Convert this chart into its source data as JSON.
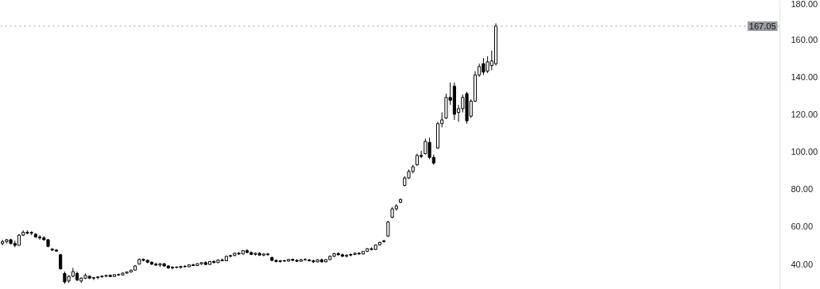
{
  "chart_data": {
    "type": "candlestick",
    "categories": [
      null,
      null,
      null,
      null,
      null,
      null,
      null,
      null,
      null,
      null,
      null,
      null,
      null,
      null,
      null,
      null,
      null,
      null,
      null,
      null,
      null,
      null,
      null,
      null,
      null,
      null,
      null,
      null,
      null,
      null,
      null,
      null,
      null,
      null,
      null,
      null,
      null,
      null,
      null,
      null,
      null,
      null,
      null,
      null,
      null,
      null,
      null,
      null,
      null,
      null,
      null,
      null,
      null,
      null,
      null,
      null,
      null,
      null,
      null,
      null,
      null,
      null,
      null,
      null,
      null,
      null,
      null,
      null,
      null,
      null,
      null,
      null,
      null,
      null,
      null,
      null,
      null,
      null,
      null,
      null,
      null,
      null,
      null,
      null,
      null,
      null,
      null,
      null,
      null,
      null,
      null,
      null,
      null,
      null,
      null,
      null,
      null,
      null,
      null,
      null,
      null,
      null,
      null,
      null,
      null,
      null,
      null,
      null,
      null,
      null,
      null,
      null,
      null,
      null,
      null,
      null,
      null,
      null,
      null,
      null,
      null,
      null,
      null,
      null,
      null,
      null,
      null,
      null,
      null,
      null,
      null,
      null,
      null,
      null,
      null,
      null,
      null,
      null,
      null,
      null,
      null,
      null,
      null,
      null,
      null,
      null,
      null,
      null,
      null,
      null,
      null,
      null,
      null,
      null,
      null,
      null,
      null,
      null,
      null,
      null,
      null,
      null,
      null,
      null,
      null,
      null,
      null,
      null,
      null,
      null,
      null,
      null,
      null,
      null,
      null,
      null,
      null,
      null,
      null,
      null,
      null,
      null,
      null,
      null,
      null,
      null,
      null,
      null
    ],
    "ohlc": [
      [
        51,
        53,
        50,
        52
      ],
      [
        52,
        53.5,
        51,
        53
      ],
      [
        53,
        53.5,
        50.5,
        51
      ],
      [
        51,
        52.5,
        49,
        50
      ],
      [
        50,
        56,
        50,
        55.5
      ],
      [
        55.5,
        58,
        55,
        57
      ],
      [
        57,
        58,
        56,
        56.5
      ],
      [
        56.5,
        57.5,
        55.5,
        57
      ],
      [
        56,
        56.5,
        54,
        54.5
      ],
      [
        54.5,
        55.5,
        53,
        54
      ],
      [
        54,
        55,
        52.5,
        53
      ],
      [
        53,
        53.5,
        49,
        49.5
      ],
      [
        48,
        48.5,
        47,
        47.5
      ],
      [
        47.5,
        48,
        46.5,
        47
      ],
      [
        45,
        45.5,
        37,
        37.5
      ],
      [
        35,
        36,
        29.5,
        30.5
      ],
      [
        31,
        34,
        30,
        33.5
      ],
      [
        33.5,
        38,
        33,
        36
      ],
      [
        35,
        36,
        31,
        31.5
      ],
      [
        31,
        33,
        30,
        32.5
      ],
      [
        32.5,
        35,
        32,
        34
      ],
      [
        33.5,
        34,
        32,
        32.5
      ],
      [
        32.5,
        33,
        31.5,
        32.8
      ],
      [
        32.8,
        33.5,
        32,
        33.2
      ],
      [
        33.2,
        34,
        32.8,
        33.6
      ],
      [
        33.6,
        34.2,
        33,
        34
      ],
      [
        34,
        34.5,
        33.2,
        33.4
      ],
      [
        33.4,
        34.6,
        33.2,
        34.4
      ],
      [
        34.4,
        35,
        33.8,
        34.2
      ],
      [
        34.2,
        35.5,
        34,
        35.2
      ],
      [
        35.2,
        36,
        34.8,
        35.8
      ],
      [
        35.8,
        37,
        35.5,
        36.8
      ],
      [
        36.8,
        39.5,
        36.5,
        39
      ],
      [
        40,
        43,
        39.8,
        42.5
      ],
      [
        42.5,
        43,
        41.5,
        42
      ],
      [
        42,
        42.5,
        40.5,
        41
      ],
      [
        41,
        41.5,
        39.5,
        40
      ],
      [
        40,
        40.8,
        39,
        39.5
      ],
      [
        39.5,
        40.5,
        38.5,
        40.2
      ],
      [
        40.2,
        40.6,
        38.6,
        39
      ],
      [
        39,
        39.5,
        37.5,
        38
      ],
      [
        38,
        38.8,
        37.2,
        38.4
      ],
      [
        38.4,
        38.8,
        37.8,
        38.2
      ],
      [
        38.2,
        39,
        37.6,
        38.8
      ],
      [
        38.8,
        39.5,
        38.2,
        38.6
      ],
      [
        38.6,
        39.8,
        38.4,
        39.6
      ],
      [
        39.6,
        40.2,
        39,
        39.2
      ],
      [
        39.2,
        40.5,
        39,
        40.2
      ],
      [
        40.2,
        41,
        39.6,
        40.8
      ],
      [
        40.8,
        41.5,
        39.5,
        39.8
      ],
      [
        39.8,
        41.6,
        39.6,
        41.4
      ],
      [
        41.4,
        42,
        40.5,
        40.8
      ],
      [
        40.8,
        42.5,
        40.6,
        42.2
      ],
      [
        42.2,
        43,
        41.5,
        41.8
      ],
      [
        41.8,
        44.5,
        41.5,
        44.2
      ],
      [
        44.2,
        45,
        43.5,
        44.6
      ],
      [
        44.6,
        46,
        44.2,
        45.8
      ],
      [
        45.8,
        46.5,
        45,
        45.4
      ],
      [
        45.4,
        47.5,
        45.2,
        47.2
      ],
      [
        47.2,
        48,
        45.8,
        46.2
      ],
      [
        46.2,
        46.8,
        44.8,
        45.2
      ],
      [
        45.2,
        46.2,
        44.6,
        45.8
      ],
      [
        45.8,
        46.4,
        44.4,
        44.8
      ],
      [
        44.8,
        45.8,
        44.2,
        45.4
      ],
      [
        45.4,
        46,
        44.6,
        45
      ],
      [
        43.5,
        44,
        41.5,
        42
      ],
      [
        42,
        42.5,
        41,
        41.4
      ],
      [
        41.4,
        42.2,
        40.8,
        41.8
      ],
      [
        41.8,
        42.4,
        41.2,
        41.6
      ],
      [
        41.6,
        42.8,
        41.4,
        42.5
      ],
      [
        42.5,
        43,
        41.6,
        42
      ],
      [
        42,
        42.6,
        41.2,
        41.5
      ],
      [
        41.5,
        42.8,
        41.3,
        42.4
      ],
      [
        42.4,
        43.2,
        42,
        42.2
      ],
      [
        42.2,
        42.8,
        41.4,
        41.8
      ],
      [
        41.8,
        42.4,
        40.6,
        41.2
      ],
      [
        41.2,
        42.6,
        41,
        42.3
      ],
      [
        42.3,
        43,
        40.8,
        41.2
      ],
      [
        41.2,
        42.6,
        41,
        42.4
      ],
      [
        42.4,
        44.6,
        42.2,
        44.2
      ],
      [
        44.2,
        46,
        43.8,
        45.6
      ],
      [
        45.6,
        46.4,
        44.6,
        45
      ],
      [
        45,
        45.6,
        43.8,
        44.2
      ],
      [
        44.2,
        45.2,
        43.6,
        44.8
      ],
      [
        44.8,
        45.6,
        44.2,
        45.2
      ],
      [
        45.2,
        46.2,
        44.8,
        45.8
      ],
      [
        45.8,
        46.4,
        45,
        45.4
      ],
      [
        45.4,
        47,
        45.2,
        46.8
      ],
      [
        46.8,
        48.5,
        46.5,
        48.2
      ],
      [
        48.2,
        49,
        47.4,
        47.8
      ],
      [
        47.8,
        50.5,
        47.6,
        50.2
      ],
      [
        50.2,
        52,
        50,
        51.6
      ],
      [
        52,
        53,
        51.5,
        52.4
      ],
      [
        55,
        63,
        54.5,
        62.5
      ],
      [
        65,
        70.5,
        64.5,
        69.5
      ],
      [
        69.5,
        72,
        68.5,
        71
      ],
      [
        73,
        75,
        72.5,
        74.5
      ],
      [
        82,
        87,
        81.5,
        86
      ],
      [
        86,
        90.5,
        85.5,
        89.5
      ],
      [
        89.5,
        93,
        88.5,
        92
      ],
      [
        93,
        99,
        92.5,
        98
      ],
      [
        98,
        100.5,
        96.5,
        97.5
      ],
      [
        99,
        107,
        98.5,
        105.5
      ],
      [
        105,
        107.5,
        96,
        97
      ],
      [
        97,
        98.5,
        93,
        94
      ],
      [
        102,
        116,
        101.5,
        115
      ],
      [
        115,
        121,
        113,
        117
      ],
      [
        118,
        131,
        117.5,
        129
      ],
      [
        129,
        137,
        125,
        127.5
      ],
      [
        135,
        137,
        117,
        120
      ],
      [
        121,
        125,
        116,
        123
      ],
      [
        123,
        130.5,
        121,
        129
      ],
      [
        131,
        132,
        115,
        116.5
      ],
      [
        119,
        128,
        118,
        127
      ],
      [
        127,
        143,
        126.5,
        141
      ],
      [
        141,
        147,
        140,
        145.5
      ],
      [
        147,
        150,
        141,
        142.5
      ],
      [
        143,
        151,
        142,
        148
      ],
      [
        146,
        154,
        143.5,
        148.5
      ],
      [
        147,
        168.5,
        146,
        167.05
      ],
      null,
      null,
      null,
      null,
      null,
      null,
      null,
      null,
      null,
      null,
      null,
      null,
      null,
      null,
      null,
      null,
      null,
      null,
      null,
      null,
      null,
      null,
      null,
      null,
      null,
      null,
      null,
      null,
      null,
      null,
      null,
      null,
      null,
      null,
      null,
      null,
      null,
      null,
      null,
      null,
      null,
      null,
      null,
      null,
      null,
      null,
      null,
      null,
      null,
      null,
      null,
      null,
      null,
      null,
      null,
      null,
      null,
      null,
      null,
      null,
      null,
      null,
      null,
      null,
      null,
      null,
      null,
      null
    ],
    "color": "#000000",
    "ylim": [
      26.5,
      180.8
    ],
    "yticks": [
      {
        "value": 40,
        "label": "40.00"
      },
      {
        "value": 60,
        "label": "60.00"
      },
      {
        "value": 80,
        "label": "80.00"
      },
      {
        "value": 100,
        "label": "100.00"
      },
      {
        "value": 120,
        "label": "120.00"
      },
      {
        "value": 140,
        "label": "140.00"
      },
      {
        "value": 160,
        "label": "160.00"
      },
      {
        "value": 180,
        "label": "180.00"
      }
    ],
    "tick_labels": "y",
    "grid": false,
    "ref_lines": [
      {
        "axis": "y",
        "value": 167.05,
        "label": "167.05",
        "color": "#9a9ca3",
        "line_style": "dotted"
      }
    ]
  }
}
